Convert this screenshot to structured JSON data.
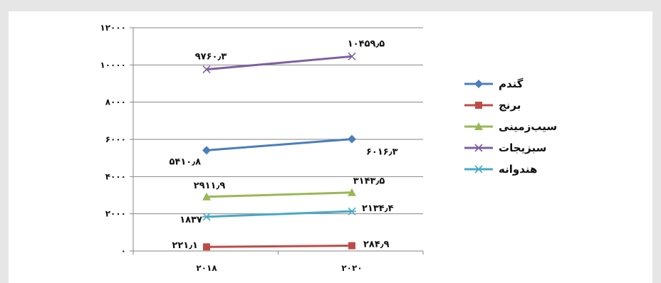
{
  "chart_data": {
    "type": "line",
    "categories": [
      "۲۰۱۸",
      "۲۰۲۰"
    ],
    "ylim": [
      0,
      12000
    ],
    "yticks": [
      0,
      2000,
      4000,
      6000,
      8000,
      10000,
      12000
    ],
    "ytick_labels": [
      "۰",
      "۲۰۰۰",
      "۴۰۰۰",
      "۶۰۰۰",
      "۸۰۰۰",
      "۱۰۰۰۰",
      "۱۲۰۰۰"
    ],
    "grid": true,
    "legend_position": "right",
    "series": [
      {
        "name": "گندم",
        "values": [
          5410.8,
          6016.3
        ],
        "labels": [
          "۵۴۱۰٫۸",
          "۶۰۱۶٫۳"
        ],
        "color": "#4a7ebb",
        "marker": "diamond"
      },
      {
        "name": "برنج",
        "values": [
          221.1,
          284.9
        ],
        "labels": [
          "۲۲۱٫۱",
          "۲۸۴٫۹"
        ],
        "color": "#be4b48",
        "marker": "square"
      },
      {
        "name": "سیب‌زمینی",
        "values": [
          2911.9,
          3143.5
        ],
        "labels": [
          "۲۹۱۱٫۹",
          "۳۱۴۳٫۵"
        ],
        "color": "#98b954",
        "marker": "triangle"
      },
      {
        "name": "سبزیجات",
        "values": [
          9760.3,
          10459.5
        ],
        "labels": [
          "۹۷۶۰٫۳",
          "۱۰۴۵۹٫۵"
        ],
        "color": "#7d5fa0",
        "marker": "x"
      },
      {
        "name": "هندوانه",
        "values": [
          1837,
          2134.4
        ],
        "labels": [
          "۱۸۳۷",
          "۲۱۳۴٫۴"
        ],
        "color": "#46aac5",
        "marker": "star"
      }
    ]
  }
}
